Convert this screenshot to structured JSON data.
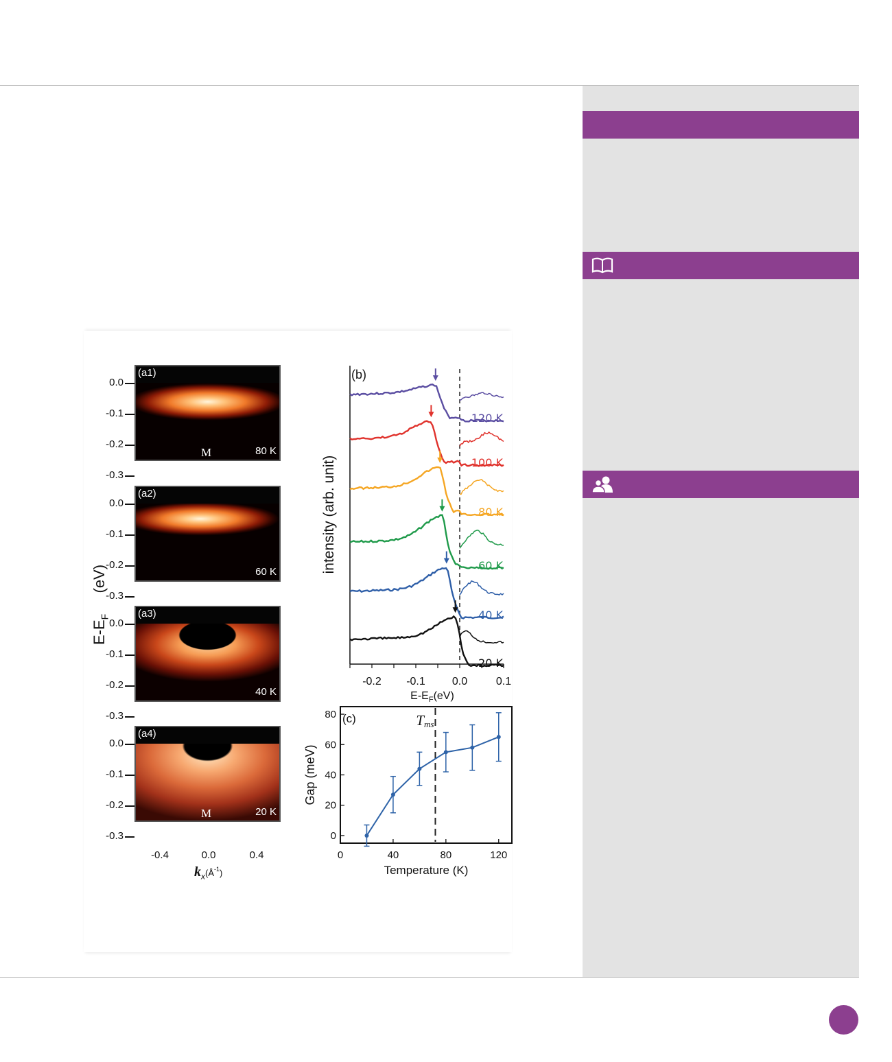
{
  "colors": {
    "accent": "#8c3f8f",
    "sidebar_bg": "#e3e3e3"
  },
  "sidebar": {
    "sections": [
      {
        "icon": ""
      },
      {
        "icon": "book-icon"
      },
      {
        "icon": "people-icon"
      }
    ]
  },
  "figure": {
    "panels_a": [
      {
        "label": "(a1)",
        "temp": "80 K",
        "point": "M"
      },
      {
        "label": "(a2)",
        "temp": "60 K",
        "point": ""
      },
      {
        "label": "(a3)",
        "temp": "40 K",
        "point": ""
      },
      {
        "label": "(a4)",
        "temp": "20 K",
        "point": "M"
      }
    ],
    "a_yticks": [
      "0.0",
      "-0.1",
      "-0.2",
      "-0.3"
    ],
    "a_xticks": [
      "-0.4",
      "0.0",
      "0.4"
    ],
    "a_ylabel": "E-E",
    "a_ylabel_sub": "F",
    "a_ylabel_unit": "(eV)",
    "a_xlabel": "k",
    "a_xlabel_sub": "x",
    "a_xlabel_unit": "(Å",
    "a_xlabel_sup": "-1",
    "a_xlabel_close": ")"
  },
  "chart_data": [
    {
      "type": "line",
      "panel": "(b)",
      "ylabel": "intensity (arb. unit)",
      "xlabel": "E-E",
      "xlabel_sub": "F",
      "xlabel_unit": "(eV)",
      "xlim": [
        -0.25,
        0.1
      ],
      "xticks": [
        "-0.2",
        "-0.1",
        "0.0",
        "0.1"
      ],
      "series": [
        {
          "name": "120 K",
          "color": "#5b4ea2",
          "gap_eV": -0.055
        },
        {
          "name": "100 K",
          "color": "#e0322c",
          "gap_eV": -0.065
        },
        {
          "name": "80 K",
          "color": "#f5a623",
          "gap_eV": -0.045
        },
        {
          "name": "60 K",
          "color": "#1f9a4a",
          "gap_eV": -0.04
        },
        {
          "name": "40 K",
          "color": "#2f5fa8",
          "gap_eV": -0.03
        },
        {
          "name": "20 K",
          "color": "#111111",
          "gap_eV": -0.01
        }
      ]
    },
    {
      "type": "line",
      "panel": "(c)",
      "xlabel": "Temperature (K)",
      "ylabel": "Gap (meV)",
      "xlim": [
        0,
        130
      ],
      "ylim": [
        -5,
        85
      ],
      "xticks": [
        0,
        40,
        80,
        120
      ],
      "yticks": [
        0,
        20,
        40,
        60,
        80
      ],
      "annotation": "T",
      "annotation_sub": "ms",
      "vline_x": 72,
      "x": [
        20,
        40,
        60,
        80,
        100,
        120
      ],
      "y": [
        0,
        27,
        44,
        55,
        58,
        65
      ],
      "err": [
        7,
        12,
        11,
        13,
        15,
        16
      ]
    }
  ]
}
